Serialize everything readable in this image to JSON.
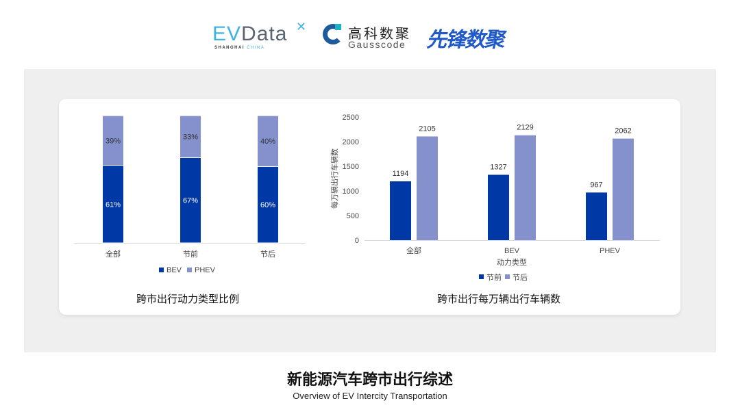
{
  "logos": {
    "evdata": {
      "text": "EVData",
      "subtitle_a": "SHANGHAI",
      "subtitle_b": "CHINA"
    },
    "gausscode": {
      "cn": "高科数聚",
      "en": "Gausscode"
    },
    "xianfeng": {
      "text": "先锋数聚"
    }
  },
  "colors": {
    "primary": "#0039a6",
    "secondary": "#8491cc",
    "panel": "#efefef"
  },
  "chart_data": [
    {
      "type": "bar",
      "stacked": "percent",
      "title": "跨市出行动力类型比例",
      "categories": [
        "全部",
        "节前",
        "节后"
      ],
      "series": [
        {
          "name": "BEV",
          "values": [
            61,
            67,
            60
          ],
          "labels": [
            "61%",
            "67%",
            "60%"
          ]
        },
        {
          "name": "PHEV",
          "values": [
            39,
            33,
            40
          ],
          "labels": [
            "39%",
            "33%",
            "40%"
          ]
        }
      ],
      "legend": "bottom"
    },
    {
      "type": "bar",
      "title": "跨市出行每万辆出行车辆数",
      "xlabel": "动力类型",
      "ylabel": "每万辆出行车辆数",
      "categories": [
        "全部",
        "BEV",
        "PHEV"
      ],
      "series": [
        {
          "name": "节前",
          "values": [
            1194,
            1327,
            967
          ]
        },
        {
          "name": "节后",
          "values": [
            2105,
            2129,
            2062
          ]
        }
      ],
      "ylim": [
        0,
        2500
      ],
      "yticks": [
        "0",
        "500",
        "1000",
        "1500",
        "2000",
        "2500"
      ],
      "legend": "bottom",
      "grid": false
    }
  ],
  "footer": {
    "title": "新能源汽车跨市出行综述",
    "subtitle": "Overview of EV Intercity Transportation"
  }
}
